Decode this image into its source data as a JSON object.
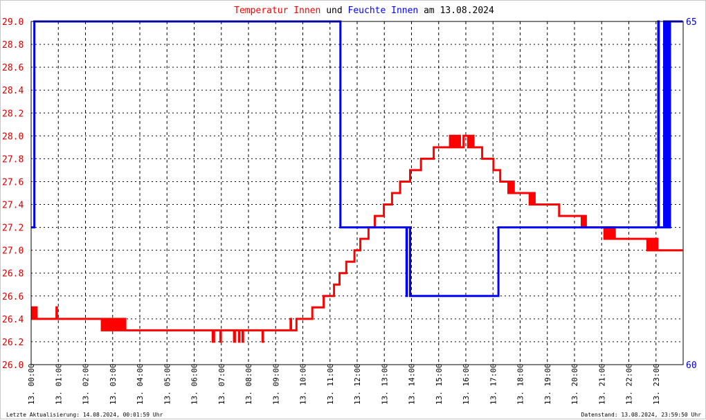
{
  "title": {
    "part1": "Temperatur Innen",
    "part2": " und ",
    "part3": "Feuchte Innen",
    "part4": " am 13.08.2024",
    "color1": "#ff0000",
    "color2": "#000000",
    "color3": "#0000ff",
    "color4": "#000000"
  },
  "footer": {
    "left": "Letzte Aktualisierung: 14.08.2024, 00:01:59 Uhr",
    "right": "Datenstand: 13.08.2024, 23:59:50 Uhr"
  },
  "chart_data": {
    "type": "line",
    "title": "Temperatur Innen und Feuchte Innen am 13.08.2024",
    "grid": true,
    "x_range_hours": [
      0,
      24
    ],
    "x_ticks": [
      "13. 00:00",
      "13. 01:00",
      "13. 02:00",
      "13. 03:00",
      "13. 04:00",
      "13. 05:00",
      "13. 06:00",
      "13. 07:00",
      "13. 08:00",
      "13. 09:00",
      "13. 10:00",
      "13. 11:00",
      "13. 12:00",
      "13. 13:00",
      "13. 14:00",
      "13. 15:00",
      "13. 16:00",
      "13. 17:00",
      "13. 18:00",
      "13. 19:00",
      "13. 20:00",
      "13. 21:00",
      "13. 22:00",
      "13. 23:00"
    ],
    "y_left": {
      "min": 26.0,
      "max": 29.0,
      "step": 0.2,
      "color": "#cc0000"
    },
    "y_right": {
      "min": 60,
      "max": 65,
      "ticks": [
        60,
        65
      ],
      "color": "#0000cc"
    },
    "series": [
      {
        "name": "Temperatur Innen",
        "axis": "left",
        "color": "#ff0000",
        "points": [
          [
            "00:00",
            26.5
          ],
          [
            "00:02",
            26.4
          ],
          [
            "00:05",
            26.5
          ],
          [
            "00:08",
            26.4
          ],
          [
            "00:10",
            26.5
          ],
          [
            "00:12",
            26.4
          ],
          [
            "00:55",
            26.4
          ],
          [
            "00:56",
            26.5
          ],
          [
            "00:57",
            26.4
          ],
          [
            "02:35",
            26.4
          ],
          [
            "02:36",
            26.3
          ],
          [
            "02:40",
            26.4
          ],
          [
            "02:43",
            26.3
          ],
          [
            "02:47",
            26.4
          ],
          [
            "02:50",
            26.3
          ],
          [
            "02:53",
            26.4
          ],
          [
            "02:57",
            26.3
          ],
          [
            "02:59",
            26.4
          ],
          [
            "03:02",
            26.3
          ],
          [
            "03:05",
            26.4
          ],
          [
            "03:08",
            26.3
          ],
          [
            "03:12",
            26.4
          ],
          [
            "03:15",
            26.3
          ],
          [
            "03:18",
            26.4
          ],
          [
            "03:22",
            26.3
          ],
          [
            "03:25",
            26.4
          ],
          [
            "03:28",
            26.3
          ],
          [
            "06:40",
            26.3
          ],
          [
            "06:41",
            26.2
          ],
          [
            "06:44",
            26.3
          ],
          [
            "06:57",
            26.3
          ],
          [
            "06:58",
            26.2
          ],
          [
            "06:59",
            26.3
          ],
          [
            "07:27",
            26.3
          ],
          [
            "07:28",
            26.2
          ],
          [
            "07:30",
            26.3
          ],
          [
            "07:38",
            26.3
          ],
          [
            "07:39",
            26.2
          ],
          [
            "07:40",
            26.3
          ],
          [
            "07:46",
            26.3
          ],
          [
            "07:47",
            26.2
          ],
          [
            "07:48",
            26.3
          ],
          [
            "08:30",
            26.3
          ],
          [
            "08:31",
            26.2
          ],
          [
            "08:32",
            26.3
          ],
          [
            "09:32",
            26.3
          ],
          [
            "09:33",
            26.4
          ],
          [
            "09:34",
            26.3
          ],
          [
            "09:45",
            26.3
          ],
          [
            "09:46",
            26.4
          ],
          [
            "10:20",
            26.4
          ],
          [
            "10:21",
            26.5
          ],
          [
            "10:45",
            26.5
          ],
          [
            "10:46",
            26.6
          ],
          [
            "11:08",
            26.6
          ],
          [
            "11:09",
            26.7
          ],
          [
            "11:20",
            26.7
          ],
          [
            "11:21",
            26.8
          ],
          [
            "11:35",
            26.8
          ],
          [
            "11:36",
            26.9
          ],
          [
            "11:53",
            26.9
          ],
          [
            "11:54",
            27.0
          ],
          [
            "12:06",
            27.0
          ],
          [
            "12:07",
            27.1
          ],
          [
            "12:24",
            27.1
          ],
          [
            "12:25",
            27.2
          ],
          [
            "12:38",
            27.2
          ],
          [
            "12:39",
            27.3
          ],
          [
            "12:58",
            27.3
          ],
          [
            "12:59",
            27.4
          ],
          [
            "13:16",
            27.4
          ],
          [
            "13:17",
            27.5
          ],
          [
            "13:34",
            27.5
          ],
          [
            "13:35",
            27.6
          ],
          [
            "13:56",
            27.6
          ],
          [
            "13:57",
            27.7
          ],
          [
            "14:20",
            27.7
          ],
          [
            "14:21",
            27.8
          ],
          [
            "14:48",
            27.8
          ],
          [
            "14:49",
            27.9
          ],
          [
            "15:24",
            27.9
          ],
          [
            "15:25",
            28.0
          ],
          [
            "15:27",
            27.9
          ],
          [
            "15:30",
            28.0
          ],
          [
            "15:33",
            27.9
          ],
          [
            "15:37",
            28.0
          ],
          [
            "15:40",
            27.9
          ],
          [
            "15:44",
            28.0
          ],
          [
            "15:47",
            27.9
          ],
          [
            "15:55",
            28.0
          ],
          [
            "16:05",
            27.9
          ],
          [
            "16:08",
            28.0
          ],
          [
            "16:11",
            27.9
          ],
          [
            "16:14",
            28.0
          ],
          [
            "16:17",
            27.9
          ],
          [
            "16:35",
            27.9
          ],
          [
            "16:36",
            27.8
          ],
          [
            "17:00",
            27.8
          ],
          [
            "17:01",
            27.7
          ],
          [
            "17:15",
            27.7
          ],
          [
            "17:16",
            27.6
          ],
          [
            "17:33",
            27.6
          ],
          [
            "17:34",
            27.5
          ],
          [
            "17:37",
            27.6
          ],
          [
            "17:40",
            27.5
          ],
          [
            "17:44",
            27.6
          ],
          [
            "17:46",
            27.5
          ],
          [
            "18:20",
            27.5
          ],
          [
            "18:21",
            27.4
          ],
          [
            "18:24",
            27.5
          ],
          [
            "18:27",
            27.4
          ],
          [
            "18:30",
            27.5
          ],
          [
            "18:32",
            27.4
          ],
          [
            "19:25",
            27.4
          ],
          [
            "19:26",
            27.3
          ],
          [
            "20:15",
            27.3
          ],
          [
            "20:16",
            27.2
          ],
          [
            "20:18",
            27.3
          ],
          [
            "20:20",
            27.2
          ],
          [
            "20:23",
            27.3
          ],
          [
            "20:25",
            27.2
          ],
          [
            "21:05",
            27.2
          ],
          [
            "21:06",
            27.1
          ],
          [
            "21:08",
            27.2
          ],
          [
            "21:11",
            27.1
          ],
          [
            "21:14",
            27.2
          ],
          [
            "21:17",
            27.1
          ],
          [
            "21:20",
            27.2
          ],
          [
            "21:23",
            27.1
          ],
          [
            "21:26",
            27.2
          ],
          [
            "21:29",
            27.1
          ],
          [
            "22:40",
            27.1
          ],
          [
            "22:41",
            27.0
          ],
          [
            "22:44",
            27.1
          ],
          [
            "22:47",
            27.0
          ],
          [
            "22:50",
            27.1
          ],
          [
            "22:53",
            27.0
          ],
          [
            "22:56",
            27.1
          ],
          [
            "22:58",
            27.0
          ],
          [
            "23:00",
            27.1
          ],
          [
            "23:03",
            27.0
          ],
          [
            "23:59",
            27.0
          ]
        ]
      },
      {
        "name": "Feuchte Innen",
        "axis": "right",
        "color": "#0000ff",
        "points": [
          [
            "00:00",
            62
          ],
          [
            "00:06",
            62
          ],
          [
            "00:07",
            65
          ],
          [
            "11:22",
            65
          ],
          [
            "11:23",
            62
          ],
          [
            "13:48",
            62
          ],
          [
            "13:49",
            61
          ],
          [
            "13:50",
            62
          ],
          [
            "13:56",
            62
          ],
          [
            "13:57",
            61
          ],
          [
            "17:11",
            61
          ],
          [
            "17:12",
            62
          ],
          [
            "23:04",
            62
          ],
          [
            "23:05",
            65
          ],
          [
            "23:06",
            62
          ],
          [
            "23:17",
            62
          ],
          [
            "23:18",
            65
          ],
          [
            "23:19",
            62
          ],
          [
            "23:21",
            65
          ],
          [
            "23:22",
            62
          ],
          [
            "23:24",
            65
          ],
          [
            "23:25",
            62
          ],
          [
            "23:27",
            65
          ],
          [
            "23:28",
            62
          ],
          [
            "23:31",
            65
          ],
          [
            "23:59",
            65
          ]
        ]
      }
    ]
  }
}
